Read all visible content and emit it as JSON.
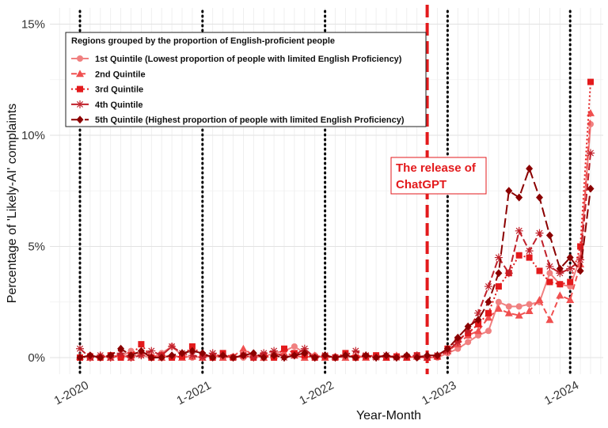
{
  "chart_data": {
    "type": "line",
    "title": "",
    "xlabel": "Year-Month",
    "ylabel": "Percentage of 'Likely-AI' complaints",
    "x_tick_labels": [
      "1-2020",
      "1-2021",
      "1-2022",
      "1-2023",
      "1-2024"
    ],
    "y_tick_labels": [
      "0%",
      "5%",
      "10%",
      "15%"
    ],
    "ylim": [
      0,
      15
    ],
    "grid": true,
    "legend_position": "top-left",
    "legend_title": "Regions grouped by the proportion of English-proficient people",
    "annotation": {
      "text_line1": "The release of",
      "text_line2": "ChatGPT",
      "date": "2022-11",
      "color": "#e31a1c"
    },
    "reference_lines": [
      "2020-01",
      "2021-01",
      "2022-01",
      "2023-01",
      "2024-01"
    ],
    "series": [
      {
        "name": "1st Quintile (Lowest proportion of people with limited English Proficiency)",
        "color": "#f08080",
        "marker": "circle",
        "dash": "solid",
        "points": [
          [
            "2020-01",
            0.0
          ],
          [
            "2020-02",
            0.1
          ],
          [
            "2020-03",
            0.0
          ],
          [
            "2020-04",
            0.1
          ],
          [
            "2020-05",
            0.05
          ],
          [
            "2020-06",
            0.3
          ],
          [
            "2020-07",
            0.1
          ],
          [
            "2020-08",
            0.0
          ],
          [
            "2020-09",
            0.2
          ],
          [
            "2020-10",
            0.5
          ],
          [
            "2020-11",
            0.1
          ],
          [
            "2020-12",
            0.0
          ],
          [
            "2021-01",
            0.05
          ],
          [
            "2021-02",
            0.1
          ],
          [
            "2021-03",
            0.0
          ],
          [
            "2021-04",
            0.05
          ],
          [
            "2021-05",
            0.0
          ],
          [
            "2021-06",
            0.1
          ],
          [
            "2021-07",
            0.05
          ],
          [
            "2021-08",
            0.2
          ],
          [
            "2021-09",
            0.3
          ],
          [
            "2021-10",
            0.5
          ],
          [
            "2021-11",
            0.2
          ],
          [
            "2021-12",
            0.1
          ],
          [
            "2022-01",
            0.0
          ],
          [
            "2022-02",
            0.05
          ],
          [
            "2022-03",
            0.1
          ],
          [
            "2022-04",
            0.0
          ],
          [
            "2022-05",
            0.05
          ],
          [
            "2022-06",
            0.1
          ],
          [
            "2022-07",
            0.05
          ],
          [
            "2022-08",
            0.0
          ],
          [
            "2022-09",
            0.05
          ],
          [
            "2022-10",
            0.0
          ],
          [
            "2022-11",
            0.0
          ],
          [
            "2022-12",
            0.0
          ],
          [
            "2023-01",
            0.2
          ],
          [
            "2023-02",
            0.4
          ],
          [
            "2023-03",
            0.7
          ],
          [
            "2023-04",
            1.0
          ],
          [
            "2023-05",
            1.2
          ],
          [
            "2023-06",
            2.5
          ],
          [
            "2023-07",
            2.3
          ],
          [
            "2023-08",
            2.3
          ],
          [
            "2023-09",
            2.4
          ],
          [
            "2023-10",
            2.5
          ],
          [
            "2023-11",
            3.8
          ],
          [
            "2023-12",
            3.3
          ],
          [
            "2024-01",
            3.2
          ],
          [
            "2024-02",
            4.5
          ],
          [
            "2024-03",
            10.5
          ]
        ]
      },
      {
        "name": "2nd Quintile",
        "color": "#f05050",
        "marker": "triangle",
        "dash": "7 4",
        "points": [
          [
            "2020-01",
            0.05
          ],
          [
            "2020-02",
            0.0
          ],
          [
            "2020-03",
            0.1
          ],
          [
            "2020-04",
            0.0
          ],
          [
            "2020-05",
            0.1
          ],
          [
            "2020-06",
            0.0
          ],
          [
            "2020-07",
            0.2
          ],
          [
            "2020-08",
            0.1
          ],
          [
            "2020-09",
            0.0
          ],
          [
            "2020-10",
            0.1
          ],
          [
            "2020-11",
            0.0
          ],
          [
            "2020-12",
            0.05
          ],
          [
            "2021-01",
            0.0
          ],
          [
            "2021-02",
            0.1
          ],
          [
            "2021-03",
            0.0
          ],
          [
            "2021-04",
            0.05
          ],
          [
            "2021-05",
            0.4
          ],
          [
            "2021-06",
            0.1
          ],
          [
            "2021-07",
            0.0
          ],
          [
            "2021-08",
            0.1
          ],
          [
            "2021-09",
            0.2
          ],
          [
            "2021-10",
            0.1
          ],
          [
            "2021-11",
            0.0
          ],
          [
            "2021-12",
            0.1
          ],
          [
            "2022-01",
            0.0
          ],
          [
            "2022-02",
            0.05
          ],
          [
            "2022-03",
            0.0
          ],
          [
            "2022-04",
            0.1
          ],
          [
            "2022-05",
            0.0
          ],
          [
            "2022-06",
            0.05
          ],
          [
            "2022-07",
            0.0
          ],
          [
            "2022-08",
            0.1
          ],
          [
            "2022-09",
            0.0
          ],
          [
            "2022-10",
            0.05
          ],
          [
            "2022-11",
            0.0
          ],
          [
            "2022-12",
            0.05
          ],
          [
            "2023-01",
            0.3
          ],
          [
            "2023-02",
            0.6
          ],
          [
            "2023-03",
            1.0
          ],
          [
            "2023-04",
            1.2
          ],
          [
            "2023-05",
            1.8
          ],
          [
            "2023-06",
            2.2
          ],
          [
            "2023-07",
            2.0
          ],
          [
            "2023-08",
            1.9
          ],
          [
            "2023-09",
            2.1
          ],
          [
            "2023-10",
            2.6
          ],
          [
            "2023-11",
            1.7
          ],
          [
            "2023-12",
            2.8
          ],
          [
            "2024-01",
            2.6
          ],
          [
            "2024-02",
            4.2
          ],
          [
            "2024-03",
            11.0
          ]
        ]
      },
      {
        "name": "3rd Quintile",
        "color": "#e31a1c",
        "marker": "square",
        "dash": "2 3",
        "points": [
          [
            "2020-01",
            0.0
          ],
          [
            "2020-02",
            0.05
          ],
          [
            "2020-03",
            0.0
          ],
          [
            "2020-04",
            0.1
          ],
          [
            "2020-05",
            0.0
          ],
          [
            "2020-06",
            0.1
          ],
          [
            "2020-07",
            0.6
          ],
          [
            "2020-08",
            0.0
          ],
          [
            "2020-09",
            0.1
          ],
          [
            "2020-10",
            0.0
          ],
          [
            "2020-11",
            0.05
          ],
          [
            "2020-12",
            0.5
          ],
          [
            "2021-01",
            0.1
          ],
          [
            "2021-02",
            0.0
          ],
          [
            "2021-03",
            0.2
          ],
          [
            "2021-04",
            0.0
          ],
          [
            "2021-05",
            0.1
          ],
          [
            "2021-06",
            0.0
          ],
          [
            "2021-07",
            0.1
          ],
          [
            "2021-08",
            0.0
          ],
          [
            "2021-09",
            0.4
          ],
          [
            "2021-10",
            0.2
          ],
          [
            "2021-11",
            0.1
          ],
          [
            "2021-12",
            0.0
          ],
          [
            "2022-01",
            0.05
          ],
          [
            "2022-02",
            0.0
          ],
          [
            "2022-03",
            0.2
          ],
          [
            "2022-04",
            0.0
          ],
          [
            "2022-05",
            0.05
          ],
          [
            "2022-06",
            0.1
          ],
          [
            "2022-07",
            0.0
          ],
          [
            "2022-08",
            0.05
          ],
          [
            "2022-09",
            0.0
          ],
          [
            "2022-10",
            0.1
          ],
          [
            "2022-11",
            0.0
          ],
          [
            "2022-12",
            0.05
          ],
          [
            "2023-01",
            0.4
          ],
          [
            "2023-02",
            0.8
          ],
          [
            "2023-03",
            1.1
          ],
          [
            "2023-04",
            1.5
          ],
          [
            "2023-05",
            2.0
          ],
          [
            "2023-06",
            3.2
          ],
          [
            "2023-07",
            3.8
          ],
          [
            "2023-08",
            4.6
          ],
          [
            "2023-09",
            4.5
          ],
          [
            "2023-10",
            3.9
          ],
          [
            "2023-11",
            3.4
          ],
          [
            "2023-12",
            3.3
          ],
          [
            "2024-01",
            3.4
          ],
          [
            "2024-02",
            5.0
          ],
          [
            "2024-03",
            12.4
          ]
        ]
      },
      {
        "name": "4th Quintile",
        "color": "#c0202a",
        "marker": "star",
        "dash": "9 4",
        "points": [
          [
            "2020-01",
            0.4
          ],
          [
            "2020-02",
            0.0
          ],
          [
            "2020-03",
            0.1
          ],
          [
            "2020-04",
            0.0
          ],
          [
            "2020-05",
            0.2
          ],
          [
            "2020-06",
            0.0
          ],
          [
            "2020-07",
            0.1
          ],
          [
            "2020-08",
            0.3
          ],
          [
            "2020-09",
            0.1
          ],
          [
            "2020-10",
            0.5
          ],
          [
            "2020-11",
            0.2
          ],
          [
            "2020-12",
            0.1
          ],
          [
            "2021-01",
            0.0
          ],
          [
            "2021-02",
            0.2
          ],
          [
            "2021-03",
            0.1
          ],
          [
            "2021-04",
            0.0
          ],
          [
            "2021-05",
            0.1
          ],
          [
            "2021-06",
            0.0
          ],
          [
            "2021-07",
            0.2
          ],
          [
            "2021-08",
            0.3
          ],
          [
            "2021-09",
            0.0
          ],
          [
            "2021-10",
            0.1
          ],
          [
            "2021-11",
            0.4
          ],
          [
            "2021-12",
            0.0
          ],
          [
            "2022-01",
            0.1
          ],
          [
            "2022-02",
            0.0
          ],
          [
            "2022-03",
            0.1
          ],
          [
            "2022-04",
            0.3
          ],
          [
            "2022-05",
            0.1
          ],
          [
            "2022-06",
            0.0
          ],
          [
            "2022-07",
            0.1
          ],
          [
            "2022-08",
            0.0
          ],
          [
            "2022-09",
            0.05
          ],
          [
            "2022-10",
            0.1
          ],
          [
            "2022-11",
            0.0
          ],
          [
            "2022-12",
            0.1
          ],
          [
            "2023-01",
            0.3
          ],
          [
            "2023-02",
            0.7
          ],
          [
            "2023-03",
            1.2
          ],
          [
            "2023-04",
            2.0
          ],
          [
            "2023-05",
            3.2
          ],
          [
            "2023-06",
            4.5
          ],
          [
            "2023-07",
            3.8
          ],
          [
            "2023-08",
            5.7
          ],
          [
            "2023-09",
            4.8
          ],
          [
            "2023-10",
            5.6
          ],
          [
            "2023-11",
            4.1
          ],
          [
            "2023-12",
            3.8
          ],
          [
            "2024-01",
            4.0
          ],
          [
            "2024-02",
            4.4
          ],
          [
            "2024-03",
            9.2
          ]
        ]
      },
      {
        "name": "5th Quintile (Highest proportion of people with limited English Proficiency)",
        "color": "#8b0000",
        "marker": "diamond",
        "dash": "12 5",
        "points": [
          [
            "2020-01",
            0.0
          ],
          [
            "2020-02",
            0.1
          ],
          [
            "2020-03",
            0.0
          ],
          [
            "2020-04",
            0.1
          ],
          [
            "2020-05",
            0.4
          ],
          [
            "2020-06",
            0.1
          ],
          [
            "2020-07",
            0.3
          ],
          [
            "2020-08",
            0.0
          ],
          [
            "2020-09",
            0.0
          ],
          [
            "2020-10",
            0.1
          ],
          [
            "2020-11",
            0.2
          ],
          [
            "2020-12",
            0.3
          ],
          [
            "2021-01",
            0.2
          ],
          [
            "2021-02",
            0.0
          ],
          [
            "2021-03",
            0.1
          ],
          [
            "2021-04",
            0.0
          ],
          [
            "2021-05",
            0.1
          ],
          [
            "2021-06",
            0.2
          ],
          [
            "2021-07",
            0.0
          ],
          [
            "2021-08",
            0.1
          ],
          [
            "2021-09",
            0.0
          ],
          [
            "2021-10",
            0.1
          ],
          [
            "2021-11",
            0.2
          ],
          [
            "2021-12",
            0.0
          ],
          [
            "2022-01",
            0.1
          ],
          [
            "2022-02",
            0.0
          ],
          [
            "2022-03",
            0.1
          ],
          [
            "2022-04",
            0.0
          ],
          [
            "2022-05",
            0.1
          ],
          [
            "2022-06",
            0.0
          ],
          [
            "2022-07",
            0.1
          ],
          [
            "2022-08",
            0.0
          ],
          [
            "2022-09",
            0.1
          ],
          [
            "2022-10",
            0.0
          ],
          [
            "2022-11",
            0.1
          ],
          [
            "2022-12",
            0.1
          ],
          [
            "2023-01",
            0.4
          ],
          [
            "2023-02",
            0.9
          ],
          [
            "2023-03",
            1.4
          ],
          [
            "2023-04",
            1.7
          ],
          [
            "2023-05",
            2.5
          ],
          [
            "2023-06",
            3.8
          ],
          [
            "2023-07",
            7.5
          ],
          [
            "2023-08",
            7.2
          ],
          [
            "2023-09",
            8.5
          ],
          [
            "2023-10",
            7.2
          ],
          [
            "2023-11",
            5.5
          ],
          [
            "2023-12",
            4.0
          ],
          [
            "2024-01",
            4.5
          ],
          [
            "2024-02",
            3.9
          ],
          [
            "2024-03",
            7.6
          ]
        ]
      }
    ]
  }
}
